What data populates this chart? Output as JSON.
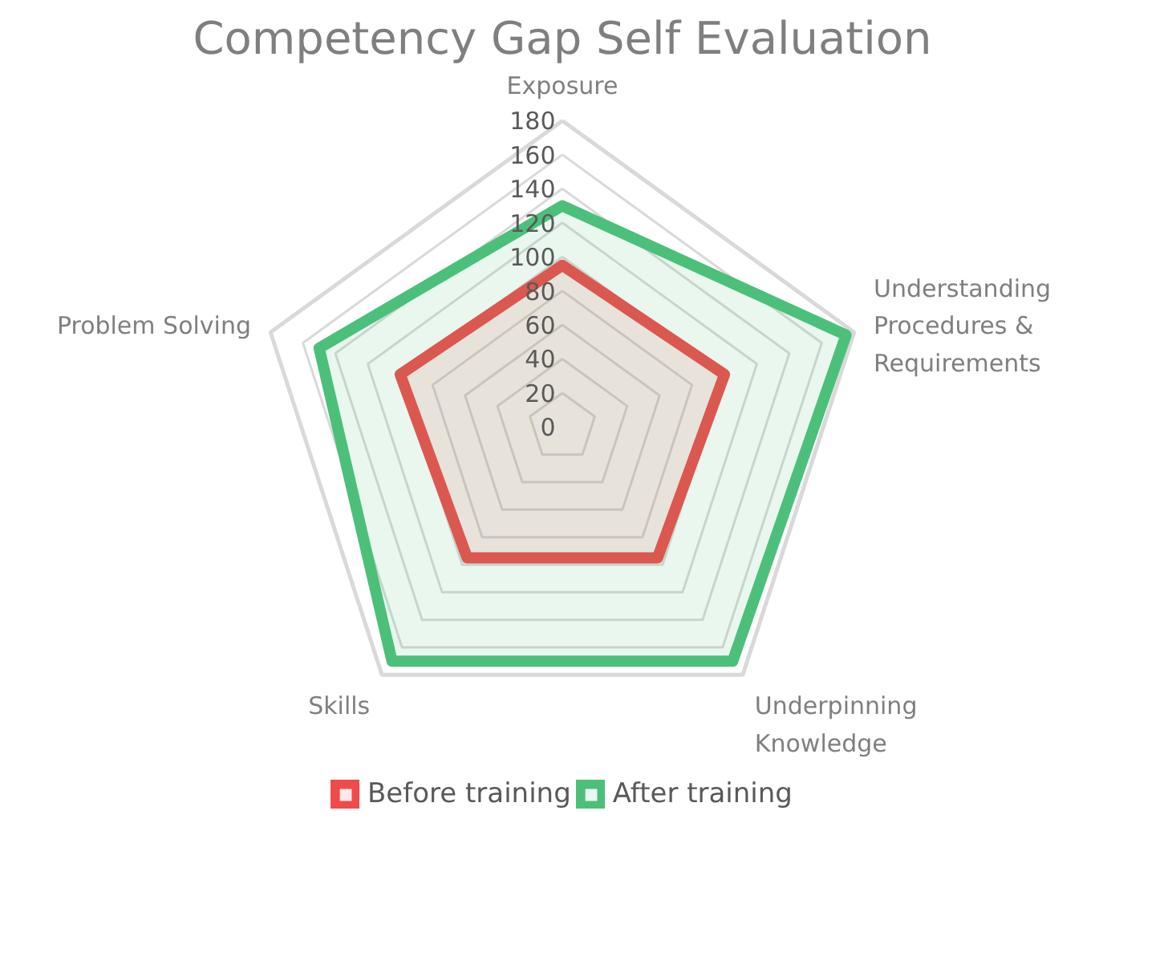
{
  "chart_data": {
    "type": "radar",
    "title": "Competency Gap Self Evaluation",
    "categories": [
      "Exposure",
      "Understanding Procedures & Requirements",
      "Underpinning Knowledge",
      "Skills",
      "Problem Solving"
    ],
    "series": [
      {
        "name": "Before training",
        "color": "#f04b4b",
        "values": [
          95,
          100,
          95,
          95,
          100
        ]
      },
      {
        "name": "After training",
        "color": "#4cc07a",
        "values": [
          130,
          175,
          170,
          170,
          150
        ]
      }
    ],
    "ylim": [
      0,
      180
    ],
    "yticks": [
      0,
      20,
      40,
      60,
      80,
      100,
      120,
      140,
      160,
      180
    ],
    "grid": true,
    "legend": "bottom"
  }
}
